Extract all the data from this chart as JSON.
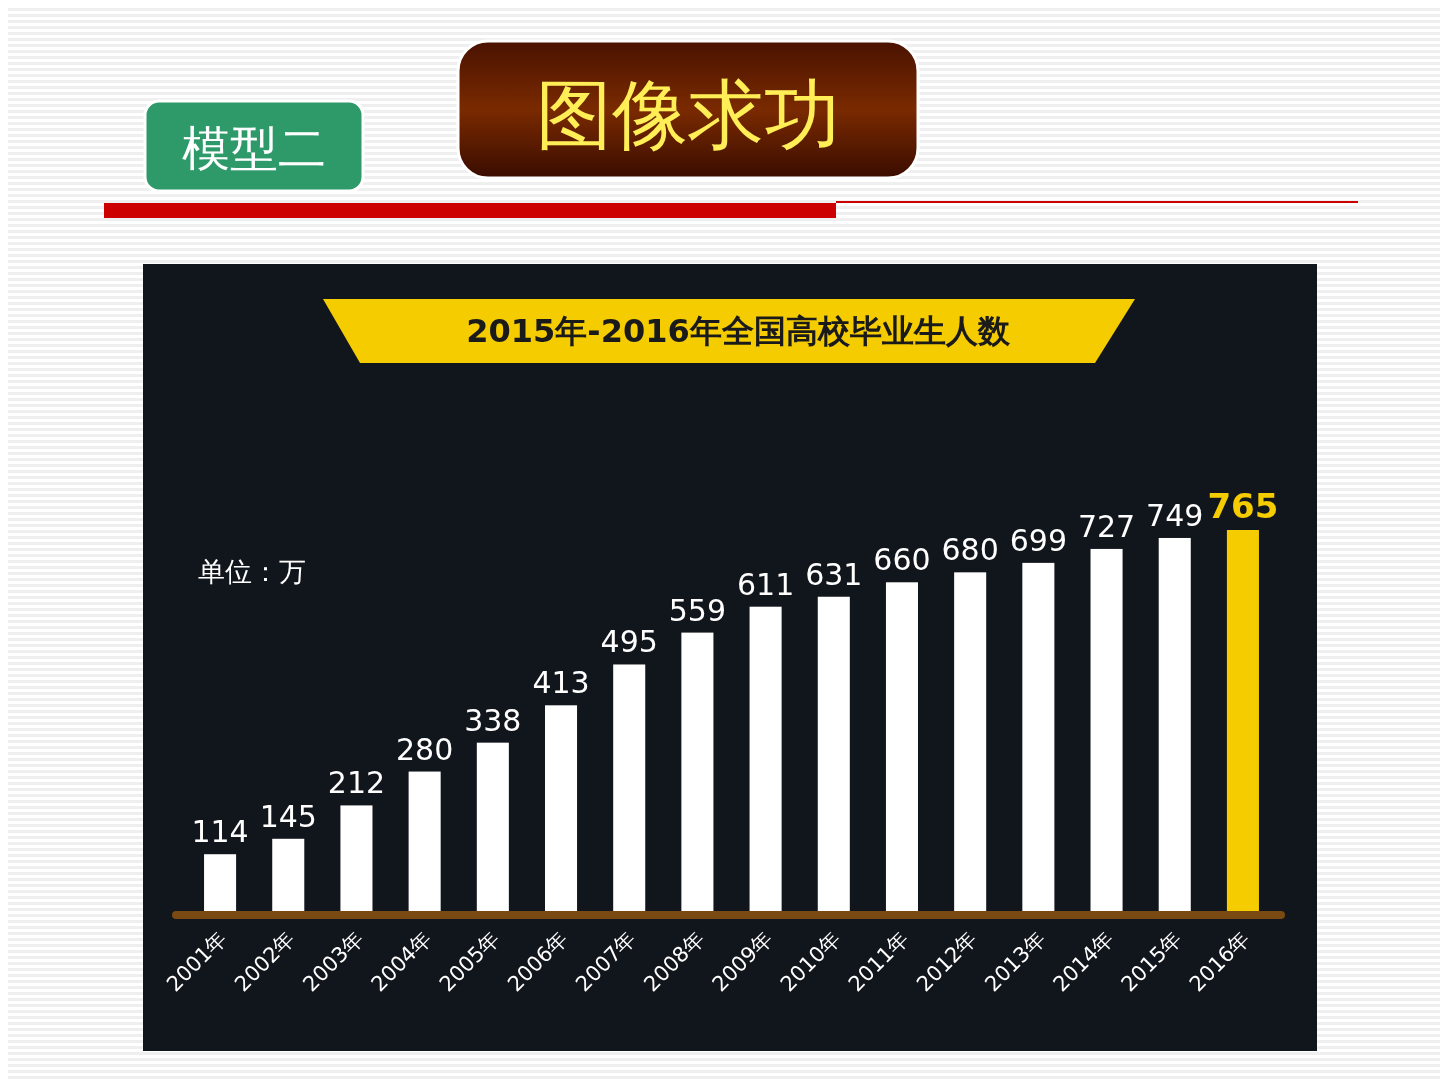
{
  "chart_data": {
    "type": "bar",
    "title": "2015年-2016年全国高校毕业生人数",
    "annotations": [
      "模型二",
      "图像求功",
      "单位：万"
    ],
    "categories": [
      "2001年",
      "2002年",
      "2003年",
      "2004年",
      "2005年",
      "2006年",
      "2007年",
      "2008年",
      "2009年",
      "2010年",
      "2011年",
      "2012年",
      "2013年",
      "2014年",
      "2015年",
      "2016年"
    ],
    "values": [
      114,
      145,
      212,
      280,
      338,
      413,
      495,
      559,
      611,
      631,
      660,
      680,
      699,
      727,
      749,
      765
    ],
    "colors": [
      "#ffffff",
      "#ffffff",
      "#ffffff",
      "#ffffff",
      "#ffffff",
      "#ffffff",
      "#ffffff",
      "#ffffff",
      "#ffffff",
      "#ffffff",
      "#ffffff",
      "#ffffff",
      "#ffffff",
      "#ffffff",
      "#ffffff",
      "#f5cc00"
    ],
    "data_labels": true
  }
}
